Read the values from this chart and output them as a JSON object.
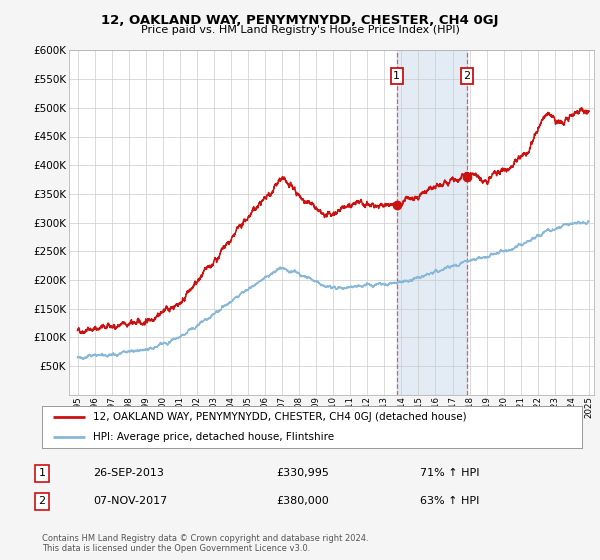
{
  "title": "12, OAKLAND WAY, PENYMYNYDD, CHESTER, CH4 0GJ",
  "subtitle": "Price paid vs. HM Land Registry's House Price Index (HPI)",
  "legend_label_red": "12, OAKLAND WAY, PENYMYNYDD, CHESTER, CH4 0GJ (detached house)",
  "legend_label_blue": "HPI: Average price, detached house, Flintshire",
  "transaction1_date": "26-SEP-2013",
  "transaction1_price": "£330,995",
  "transaction1_hpi": "71% ↑ HPI",
  "transaction2_date": "07-NOV-2017",
  "transaction2_price": "£380,000",
  "transaction2_hpi": "63% ↑ HPI",
  "footer": "Contains HM Land Registry data © Crown copyright and database right 2024.\nThis data is licensed under the Open Government Licence v3.0.",
  "ylim": [
    0,
    600000
  ],
  "yticks": [
    0,
    50000,
    100000,
    150000,
    200000,
    250000,
    300000,
    350000,
    400000,
    450000,
    500000,
    550000,
    600000
  ],
  "background_color": "#f5f5f5",
  "plot_bg_color": "#ffffff",
  "red_color": "#cc1111",
  "blue_color": "#88b8d8",
  "transaction1_x": 2013.73,
  "transaction1_y": 330995,
  "transaction2_x": 2017.85,
  "transaction2_y": 380000,
  "xlim_left": 1994.5,
  "xlim_right": 2025.3
}
